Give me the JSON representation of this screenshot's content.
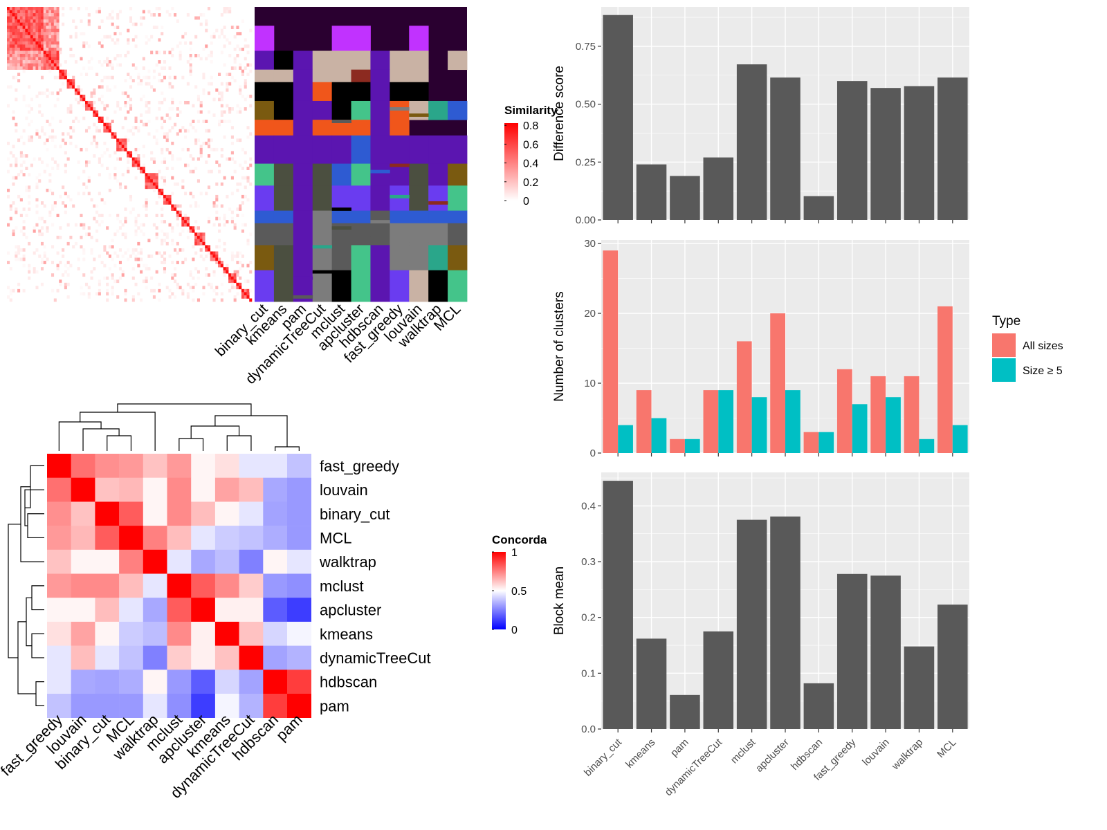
{
  "chart_data": [
    {
      "type": "heatmap",
      "name": "similarity-heatmap",
      "rows": 94,
      "cols": 94,
      "legend": {
        "title": "Similarity",
        "ticks": [
          "0",
          "0.2",
          "0.4",
          "0.6",
          "0.8"
        ],
        "colors": [
          "#ffffff",
          "#ff0000"
        ]
      }
    },
    {
      "type": "heatmap",
      "name": "cluster-label-heatmap",
      "columns": [
        "binary_cut",
        "kmeans",
        "pam",
        "dynamicTreeCut",
        "mclust",
        "apcluster",
        "hdbscan",
        "fast_greedy",
        "louvain",
        "walktrap",
        "MCL"
      ],
      "cluster_colors": [
        "#2a0030",
        "#c132ff",
        "#5b15b0",
        "#c9b2a4",
        "#000000",
        "#f0561b",
        "#4b4f40",
        "#2e5bd2",
        "#7c7c7c",
        "#5a5a5a",
        "#7a5a10",
        "#44c48a",
        "#6a3cf0",
        "#2aa68a",
        "#8c2a20"
      ]
    },
    {
      "type": "heatmap",
      "name": "concordance-heatmap",
      "labels": [
        "fast_greedy",
        "louvain",
        "binary_cut",
        "MCL",
        "walktrap",
        "mclust",
        "apcluster",
        "kmeans",
        "dynamicTreeCut",
        "hdbscan",
        "pam"
      ],
      "values": [
        [
          1.0,
          0.78,
          0.72,
          0.7,
          0.62,
          0.7,
          0.52,
          0.56,
          0.45,
          0.45,
          0.38
        ],
        [
          0.78,
          1.0,
          0.62,
          0.64,
          0.52,
          0.73,
          0.52,
          0.68,
          0.63,
          0.33,
          0.3
        ],
        [
          0.72,
          0.62,
          1.0,
          0.82,
          0.52,
          0.73,
          0.63,
          0.52,
          0.45,
          0.32,
          0.3
        ],
        [
          0.7,
          0.64,
          0.82,
          1.0,
          0.75,
          0.63,
          0.45,
          0.4,
          0.38,
          0.34,
          0.3
        ],
        [
          0.62,
          0.52,
          0.52,
          0.75,
          1.0,
          0.45,
          0.33,
          0.37,
          0.25,
          0.52,
          0.45
        ],
        [
          0.7,
          0.73,
          0.73,
          0.63,
          0.45,
          1.0,
          0.82,
          0.73,
          0.6,
          0.3,
          0.28
        ],
        [
          0.52,
          0.52,
          0.63,
          0.45,
          0.33,
          0.82,
          1.0,
          0.53,
          0.53,
          0.18,
          0.12
        ],
        [
          0.56,
          0.68,
          0.52,
          0.4,
          0.37,
          0.73,
          0.53,
          1.0,
          0.62,
          0.42,
          0.48
        ],
        [
          0.45,
          0.63,
          0.45,
          0.38,
          0.25,
          0.6,
          0.53,
          0.62,
          1.0,
          0.32,
          0.35
        ],
        [
          0.45,
          0.33,
          0.32,
          0.34,
          0.52,
          0.3,
          0.18,
          0.42,
          0.32,
          1.0,
          0.88
        ],
        [
          0.38,
          0.3,
          0.3,
          0.3,
          0.45,
          0.28,
          0.12,
          0.48,
          0.35,
          0.88,
          1.0
        ]
      ],
      "legend": {
        "title": "Concordance",
        "ticks": [
          "0",
          "0.5",
          "1"
        ],
        "colors": [
          "#0000ff",
          "#ffffff",
          "#ff0000"
        ]
      }
    },
    {
      "type": "bar",
      "name": "difference-score",
      "categories": [
        "binary_cut",
        "kmeans",
        "pam",
        "dynamicTreeCut",
        "mclust",
        "apcluster",
        "hdbscan",
        "fast_greedy",
        "louvain",
        "walktrap",
        "MCL"
      ],
      "values": [
        0.885,
        0.24,
        0.19,
        0.27,
        0.672,
        0.615,
        0.103,
        0.6,
        0.57,
        0.578,
        0.615
      ],
      "ylabel": "Difference score",
      "ylim": [
        0,
        0.92
      ],
      "yticks": [
        "0.00",
        "0.25",
        "0.50",
        "0.75"
      ],
      "grid": true
    },
    {
      "type": "bar",
      "name": "number-of-clusters",
      "categories": [
        "binary_cut",
        "kmeans",
        "pam",
        "dynamicTreeCut",
        "mclust",
        "apcluster",
        "hdbscan",
        "fast_greedy",
        "louvain",
        "walktrap",
        "MCL"
      ],
      "series": [
        {
          "name": "All sizes",
          "color": "#f8766d",
          "values": [
            29,
            9,
            2,
            9,
            16,
            20,
            3,
            12,
            11,
            11,
            21
          ]
        },
        {
          "name": "Size ≥ 5",
          "color": "#00bfc4",
          "values": [
            4,
            5,
            2,
            9,
            8,
            9,
            3,
            7,
            8,
            2,
            4
          ]
        }
      ],
      "ylabel": "Number of clusters",
      "ylim": [
        0,
        30.5
      ],
      "yticks": [
        "0",
        "10",
        "20",
        "30"
      ],
      "legend": {
        "title": "Type",
        "position": "right"
      },
      "grid": true
    },
    {
      "type": "bar",
      "name": "block-mean",
      "categories": [
        "binary_cut",
        "kmeans",
        "pam",
        "dynamicTreeCut",
        "mclust",
        "apcluster",
        "hdbscan",
        "fast_greedy",
        "louvain",
        "walktrap",
        "MCL"
      ],
      "values": [
        0.445,
        0.162,
        0.061,
        0.175,
        0.375,
        0.381,
        0.082,
        0.278,
        0.275,
        0.148,
        0.223
      ],
      "ylabel": "Block mean",
      "ylim": [
        0,
        0.46
      ],
      "yticks": [
        "0.0",
        "0.1",
        "0.2",
        "0.3",
        "0.4"
      ],
      "grid": true
    }
  ]
}
